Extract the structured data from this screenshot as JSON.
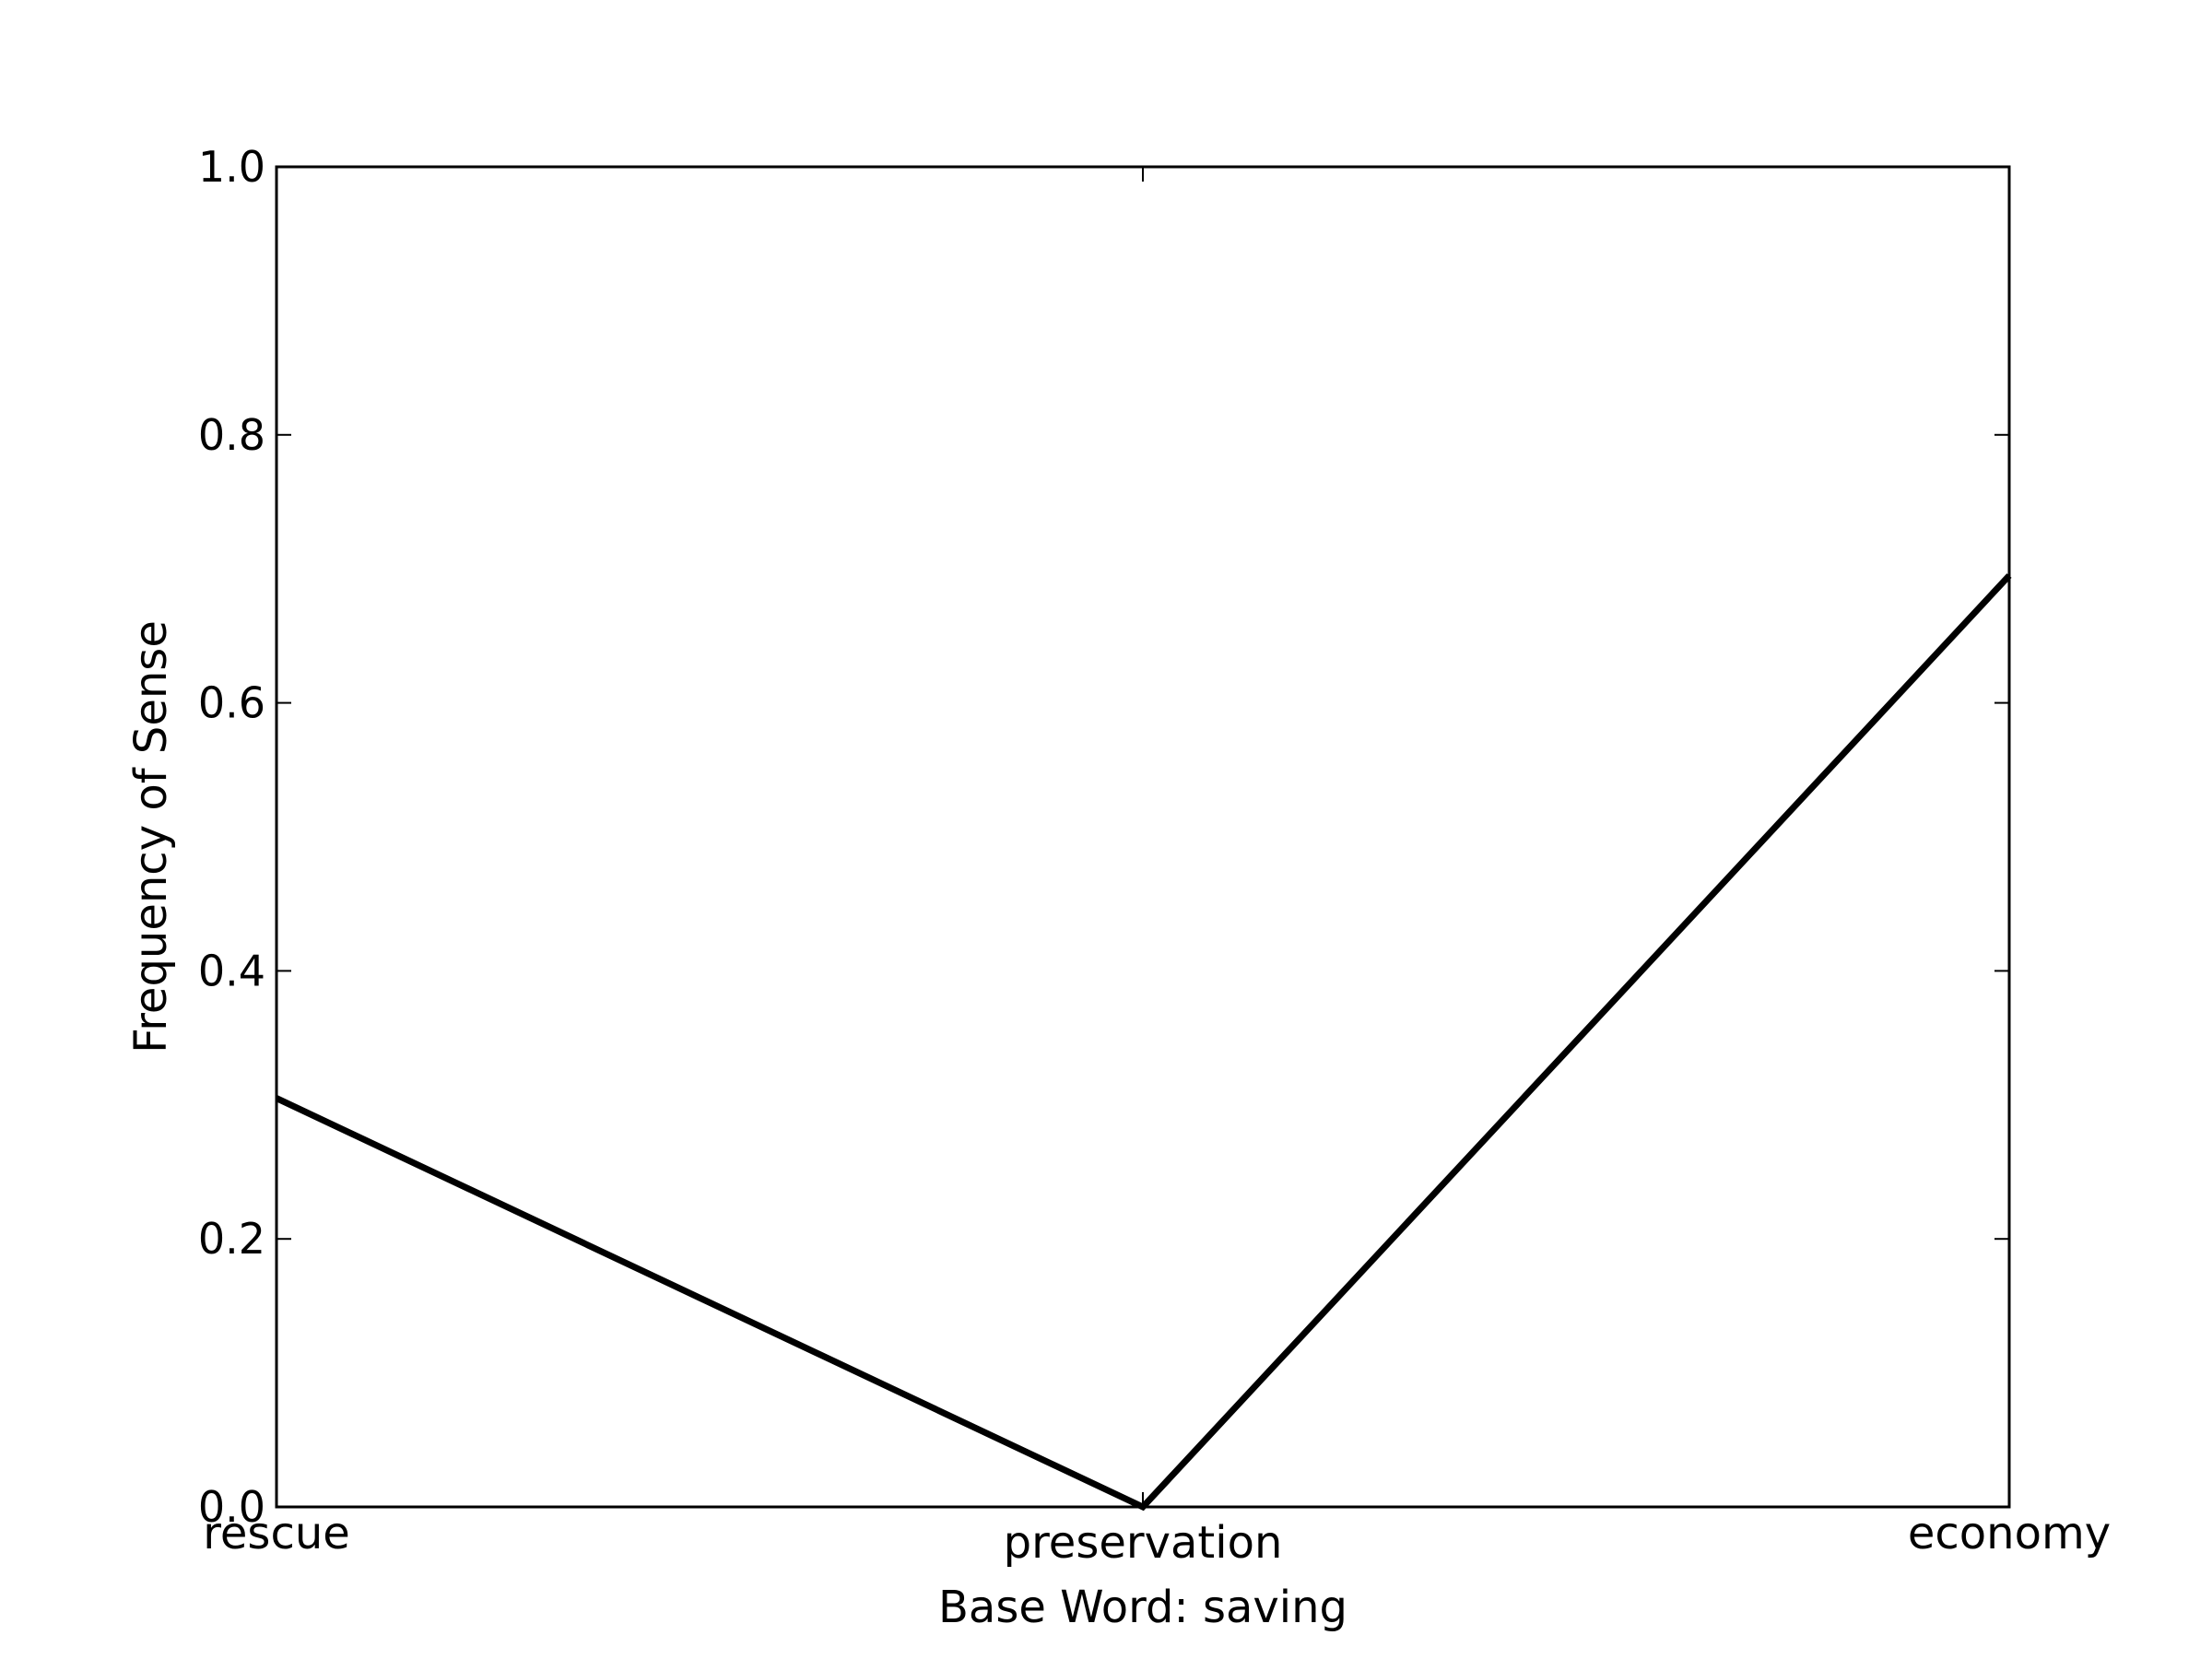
{
  "chart_data": {
    "type": "line",
    "title": "",
    "xlabel": "Base Word: saving",
    "ylabel": "Frequency of Sense",
    "categories": [
      "rescue",
      "preservation",
      "economy"
    ],
    "series": [
      {
        "values": [
          0.305,
          0.0,
          0.695
        ],
        "color": "#000000"
      }
    ],
    "ylim": [
      0.0,
      1.0
    ],
    "yticks": [
      "0.0",
      "0.2",
      "0.4",
      "0.6",
      "0.8",
      "1.0"
    ],
    "grid": false,
    "legend": "none"
  }
}
